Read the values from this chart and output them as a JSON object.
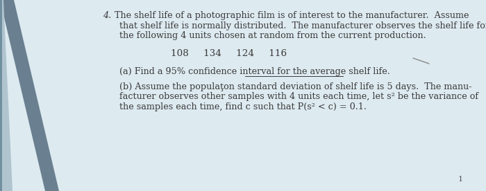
{
  "bg_color": "#cddde6",
  "panel_color_dark": "#6a8090",
  "panel_color_light": "#8fa4b0",
  "content_bg": "#ddeaf0",
  "text_color": "#3a3a3a",
  "number": "4.",
  "line1": "The shelf life of a photographic film is of interest to the manufacturer.  Assume",
  "line2": "that shelf life is normally distributed.  The manufacturer observes the shelf life for",
  "line3": "the following 4 units chosen at random from the current production.",
  "data_values": "108     134     124     116",
  "part_a": "(a) Find a 95% confidence interval for the average shelf life.",
  "part_b1": "(b) Assume the populaţon standard deviation of shelf life is 5 days.  The manu-",
  "part_b2": "facturer observes other samples with 4 units each time, let s² be the variance of",
  "part_b3": "the samples each time, find c such that P(s² < c) = 0.1.",
  "page_num": "1",
  "font_size": 9.2,
  "lw_underline": 0.7
}
